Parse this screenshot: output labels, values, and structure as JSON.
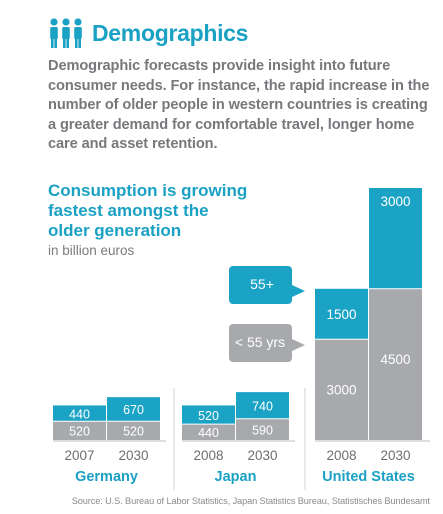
{
  "header": {
    "title": "Demographics",
    "icon": "people-group-icon"
  },
  "intro": "Demographic forecasts provide insight into future consumer needs. For instance, the rapid increase in the number of older people in western countries is creating a greater demand for comfortable travel, longer home care and asset retention.",
  "chart_data": {
    "type": "bar",
    "stacked": true,
    "title": "Consumption is growing fastest amongst the older generation",
    "unit": "in billion euros",
    "groups": [
      {
        "name": "Germany",
        "years": [
          "2007",
          "2030"
        ],
        "under55": [
          520,
          520
        ],
        "over55": [
          440,
          670
        ]
      },
      {
        "name": "Japan",
        "years": [
          "2008",
          "2030"
        ],
        "under55": [
          440,
          590
        ],
        "over55": [
          520,
          740
        ]
      },
      {
        "name": "United States",
        "years": [
          "2008",
          "2030"
        ],
        "under55": [
          3000,
          4500
        ],
        "over55": [
          1500,
          3000
        ]
      }
    ],
    "series": [
      {
        "name": "55+",
        "color": "#1ba3c6"
      },
      {
        "name": "< 55 yrs",
        "color": "#a7a9ac"
      }
    ],
    "scale": "not to scale across countries"
  },
  "source": "Source: U.S. Bureau of Labor Statistics, Japan Statistics Bureau, Statistisches Bundesamt"
}
